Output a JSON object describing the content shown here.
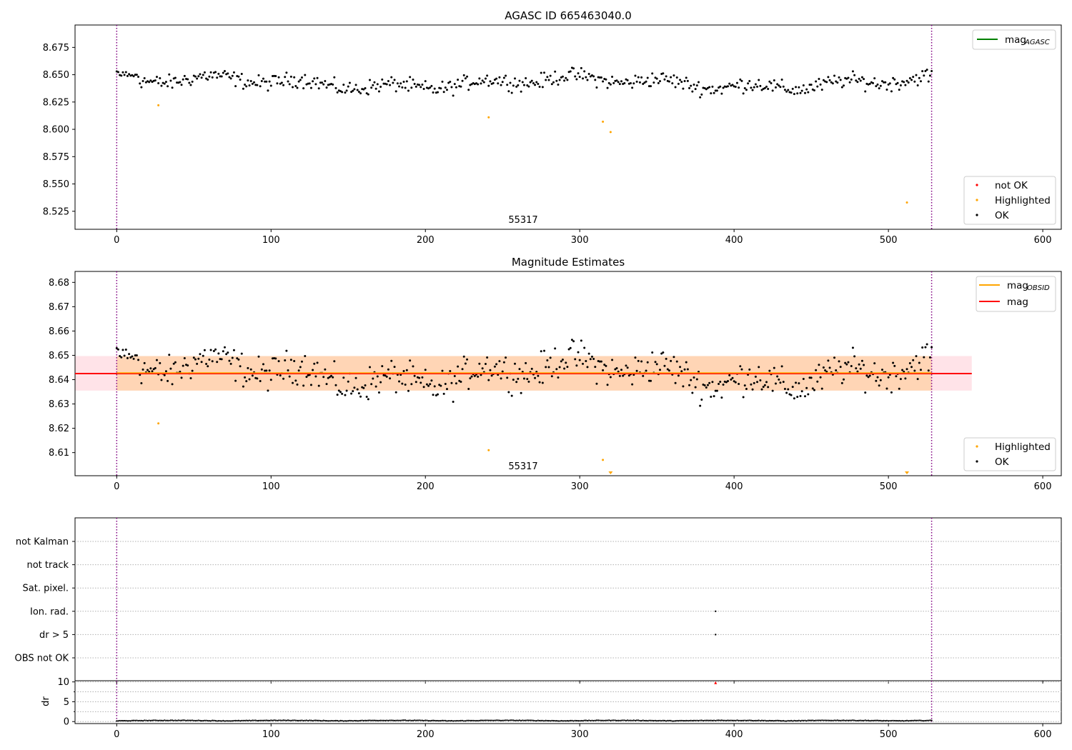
{
  "chart_data": [
    {
      "type": "scatter",
      "title": "AGASC ID 665463040.0",
      "xlabel": "",
      "ylabel": "",
      "xlim": [
        -27,
        612
      ],
      "ylim": [
        8.5085,
        8.6955
      ],
      "x_ticks": [
        "0",
        "100",
        "200",
        "300",
        "400",
        "500",
        "600"
      ],
      "y_ticks": [
        "8.525",
        "8.550",
        "8.575",
        "8.600",
        "8.625",
        "8.650",
        "8.675"
      ],
      "obsid_label": "55317",
      "obsid_label_x": 263,
      "vlines": [
        0,
        528
      ],
      "series": [
        {
          "name": "OK",
          "color": "#000000",
          "generator": "ok_points",
          "n": 529,
          "mean": 8.6425,
          "spread": 0.0075
        },
        {
          "name": "Highlighted",
          "color": "#ffa500",
          "points": [
            [
              27,
              8.622
            ],
            [
              241,
              8.611
            ],
            [
              315,
              8.607
            ],
            [
              320,
              8.5975
            ],
            [
              512,
              8.533
            ]
          ]
        },
        {
          "name": "not OK",
          "color": "#ff0000",
          "points": []
        }
      ],
      "legends": {
        "upper_right": [
          {
            "label": "mag",
            "sub": "AGASC",
            "color": "#008000"
          }
        ],
        "lower_right": [
          {
            "label": "not OK",
            "color": "#ff0000"
          },
          {
            "label": "Highlighted",
            "color": "#ffa500"
          },
          {
            "label": "OK",
            "color": "#000000"
          }
        ]
      }
    },
    {
      "type": "scatter",
      "title": "Magnitude Estimates",
      "xlabel": "",
      "ylabel": "",
      "xlim": [
        -27,
        612
      ],
      "ylim": [
        8.6005,
        8.6845
      ],
      "x_ticks": [
        "0",
        "100",
        "200",
        "300",
        "400",
        "500",
        "600"
      ],
      "y_ticks": [
        "8.61",
        "8.62",
        "8.63",
        "8.64",
        "8.65",
        "8.66",
        "8.67",
        "8.68"
      ],
      "obsid_label": "55317",
      "obsid_label_x": 263,
      "vlines": [
        0,
        528
      ],
      "mag_line": {
        "value": 8.6425,
        "xrange": [
          -27,
          554
        ],
        "color": "#ff0000"
      },
      "mag_obsid_line": {
        "value": 8.6425,
        "xrange": [
          0,
          528
        ],
        "color": "#ffa500"
      },
      "mag_band": {
        "low": 8.6355,
        "high": 8.6497,
        "xrange": [
          -27,
          554
        ],
        "color": "#ffc0cb"
      },
      "mag_obsid_band": {
        "low": 8.6355,
        "high": 8.6497,
        "xrange": [
          0,
          528
        ],
        "color": "#ffa500"
      },
      "series": [
        {
          "name": "OK",
          "color": "#000000",
          "generator": "ok_points",
          "n": 529,
          "mean": 8.6425,
          "spread": 0.0075
        },
        {
          "name": "Highlighted",
          "color": "#ffa500",
          "points": [
            [
              27,
              8.622
            ],
            [
              241,
              8.611
            ],
            [
              315,
              8.607
            ]
          ],
          "clipped_points": [
            320,
            512
          ]
        }
      ],
      "legends": {
        "upper_right": [
          {
            "label": "mag",
            "sub": "OBSID",
            "color": "#ffa500"
          },
          {
            "label": "mag",
            "sub": "",
            "color": "#ff0000"
          }
        ],
        "lower_right": [
          {
            "label": "Highlighted",
            "color": "#ffa500"
          },
          {
            "label": "OK",
            "color": "#000000"
          }
        ]
      }
    },
    {
      "type": "scatter",
      "title": "",
      "xlabel": "",
      "ylabel": "",
      "xlim": [
        -27,
        612
      ],
      "categories": [
        "OBS not OK",
        "dr > 5",
        "Ion. rad.",
        "Sat. pixel.",
        "not track",
        "not Kalman"
      ],
      "vlines": [
        0,
        528
      ],
      "flags": [
        {
          "category": "Ion. rad.",
          "x": [
            388
          ]
        },
        {
          "category": "dr > 5",
          "x": [
            388
          ]
        }
      ]
    },
    {
      "type": "line",
      "title": "",
      "xlabel": "",
      "ylabel": "dr",
      "xlim": [
        -27,
        612
      ],
      "ylim": [
        -0.5,
        10.3
      ],
      "x_ticks": [
        "0",
        "100",
        "200",
        "300",
        "400",
        "500",
        "600"
      ],
      "y_ticks": [
        "0",
        "5",
        "10"
      ],
      "vlines": [
        0,
        528
      ],
      "series": [
        {
          "name": "dr",
          "color": "#000000",
          "generator": "dr_points",
          "n": 529
        },
        {
          "name": "outlier",
          "color": "#ff0000",
          "points": [
            [
              388,
              9.8
            ]
          ]
        }
      ]
    }
  ]
}
